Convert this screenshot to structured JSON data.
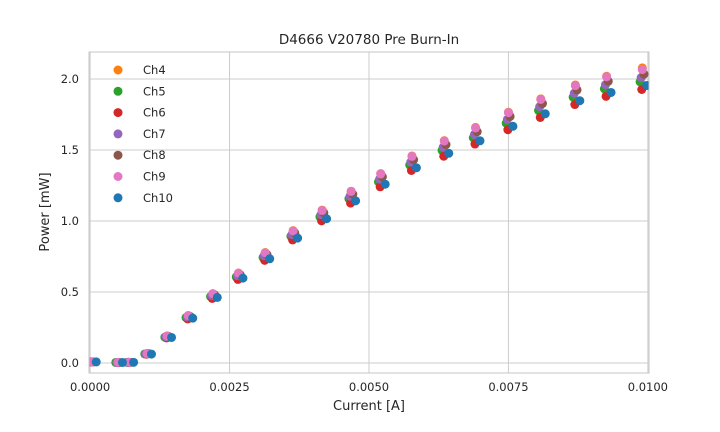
{
  "window": {
    "description": "matplotlib L-I curve scatter figure"
  },
  "colors": {
    "background": "#ffffff",
    "grid": "#cccccc",
    "spine": "#c6c6c6",
    "text": "#262626"
  },
  "chart_data": {
    "type": "scatter",
    "title": "D4666 V20780 Pre Burn-In",
    "xlabel": "Current [A]",
    "ylabel": "Power [mW]",
    "xlim": [
      -2e-05,
      0.01002
    ],
    "ylim": [
      -0.07,
      2.19
    ],
    "xticks": [
      0.0,
      0.0025,
      0.005,
      0.0075,
      0.01
    ],
    "xtick_labels": [
      "0.0000",
      "0.0025",
      "0.0050",
      "0.0075",
      "0.0100"
    ],
    "yticks": [
      0.0,
      0.5,
      1.0,
      1.5,
      2.0
    ],
    "ytick_labels": [
      "0.0",
      "0.5",
      "1.0",
      "1.5",
      "2.0"
    ],
    "grid": true,
    "legend_position": "upper left",
    "marker_diameter_px": 9,
    "currents": [
      3e-05,
      0.0005,
      0.0007,
      0.00102,
      0.00138,
      0.00176,
      0.0022,
      0.00266,
      0.00314,
      0.00364,
      0.00416,
      0.00468,
      0.00521,
      0.00577,
      0.00635,
      0.00691,
      0.0075,
      0.00808,
      0.0087,
      0.00926,
      0.0099
    ],
    "series": [
      {
        "name": "Ch4",
        "color": "#ff7f0e",
        "x_offset": 0.0,
        "powers": [
          0.008,
          0.004,
          0.005,
          0.067,
          0.191,
          0.335,
          0.489,
          0.634,
          0.778,
          0.932,
          1.077,
          1.21,
          1.334,
          1.458,
          1.566,
          1.659,
          1.766,
          1.86,
          1.958,
          2.019,
          2.078
        ]
      },
      {
        "name": "Ch5",
        "color": "#2ca02c",
        "x_offset": -4e-05,
        "powers": [
          0.008,
          0.004,
          0.005,
          0.064,
          0.182,
          0.32,
          0.468,
          0.606,
          0.744,
          0.892,
          1.03,
          1.157,
          1.276,
          1.394,
          1.497,
          1.586,
          1.689,
          1.778,
          1.872,
          1.931,
          1.98
        ]
      },
      {
        "name": "Ch6",
        "color": "#d62728",
        "x_offset": -1e-05,
        "powers": [
          0.008,
          0.004,
          0.005,
          0.062,
          0.177,
          0.311,
          0.455,
          0.589,
          0.723,
          0.867,
          1.001,
          1.126,
          1.241,
          1.356,
          1.456,
          1.542,
          1.643,
          1.729,
          1.82,
          1.878,
          1.926
        ]
      },
      {
        "name": "Ch7",
        "color": "#9467bd",
        "x_offset": -2e-05,
        "powers": [
          0.008,
          0.004,
          0.005,
          0.065,
          0.185,
          0.325,
          0.475,
          0.615,
          0.755,
          0.905,
          1.045,
          1.175,
          1.295,
          1.415,
          1.52,
          1.61,
          1.715,
          1.805,
          1.9,
          1.96,
          2.01
        ]
      },
      {
        "name": "Ch8",
        "color": "#8c564b",
        "x_offset": 3e-05,
        "powers": [
          0.008,
          0.004,
          0.005,
          0.066,
          0.187,
          0.329,
          0.481,
          0.622,
          0.764,
          0.916,
          1.058,
          1.189,
          1.311,
          1.432,
          1.538,
          1.629,
          1.736,
          1.827,
          1.923,
          1.984,
          2.034
        ]
      },
      {
        "name": "Ch9",
        "color": "#e377c2",
        "x_offset": 0.0,
        "powers": [
          0.009,
          0.005,
          0.006,
          0.067,
          0.19,
          0.334,
          0.488,
          0.632,
          0.776,
          0.93,
          1.074,
          1.208,
          1.331,
          1.455,
          1.563,
          1.655,
          1.763,
          1.856,
          1.953,
          2.015,
          2.066
        ]
      },
      {
        "name": "Ch10",
        "color": "#1f77b4",
        "x_offset": 8e-05,
        "powers": [
          0.008,
          0.004,
          0.005,
          0.063,
          0.18,
          0.316,
          0.462,
          0.598,
          0.734,
          0.88,
          1.016,
          1.142,
          1.259,
          1.375,
          1.477,
          1.565,
          1.667,
          1.755,
          1.847,
          1.905,
          1.954
        ]
      }
    ]
  }
}
